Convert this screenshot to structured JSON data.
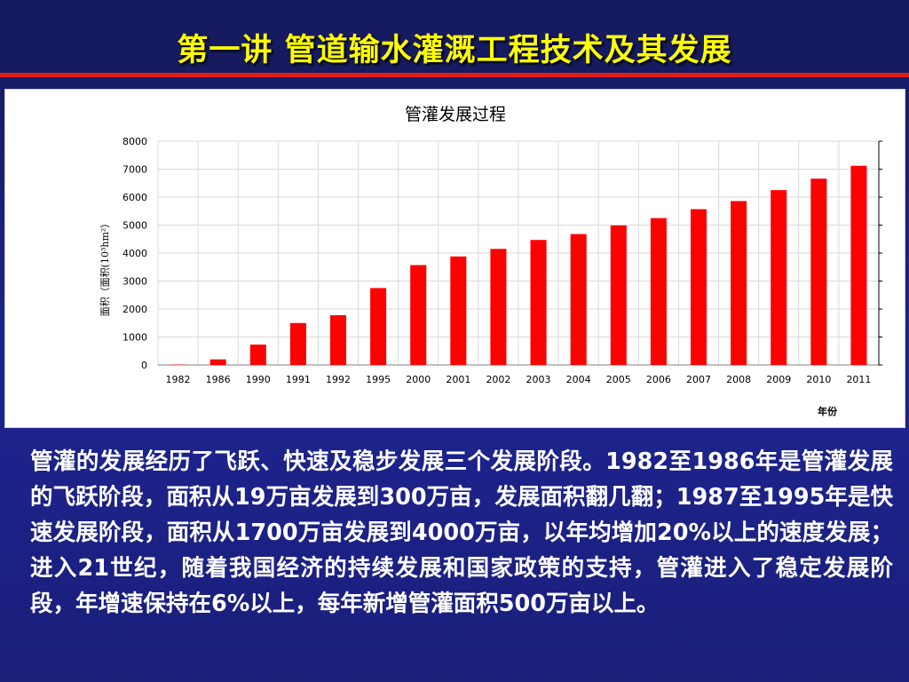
{
  "slide": {
    "title": "第一讲  管道输水灌溉工程技术及其发展",
    "paragraph": "管灌的发展经历了飞跃、快速及稳步发展三个发展阶段。1982至1986年是管灌发展的飞跃阶段，面积从19万亩发展到300万亩，发展面积翻几翻；1987至1995年是快速发展阶段，面积从1700万亩发展到4000万亩，以年均增加20%以上的速度发展；进入21世纪，随着我国经济的持续发展和国家政策的支持，管灌进入了稳定发展阶段，年增速保持在6%以上，每年新增管灌面积500万亩以上。"
  },
  "colors": {
    "title_text": "#ffff00",
    "title_bar": "#161a5e",
    "rule": "#e21b1b",
    "bar": "#ff0000",
    "body_text": "#ffffff"
  },
  "chart_data": {
    "type": "bar",
    "title": "管灌发展过程",
    "xlabel": "年份",
    "ylabel": "面积（面积(10³hm²）",
    "categories": [
      "1982",
      "1986",
      "1990",
      "1991",
      "1992",
      "1995",
      "2000",
      "2001",
      "2002",
      "2003",
      "2004",
      "2005",
      "2006",
      "2007",
      "2008",
      "2009",
      "2010",
      "2011"
    ],
    "values": [
      13,
      200,
      730,
      1500,
      1780,
      2750,
      3570,
      3880,
      4150,
      4470,
      4680,
      4990,
      5250,
      5570,
      5860,
      6250,
      6660,
      7120
    ],
    "ylim": [
      0,
      8000
    ],
    "yticks": [
      0,
      1000,
      2000,
      3000,
      4000,
      5000,
      6000,
      7000,
      8000
    ],
    "grid": true,
    "legend": "none"
  }
}
